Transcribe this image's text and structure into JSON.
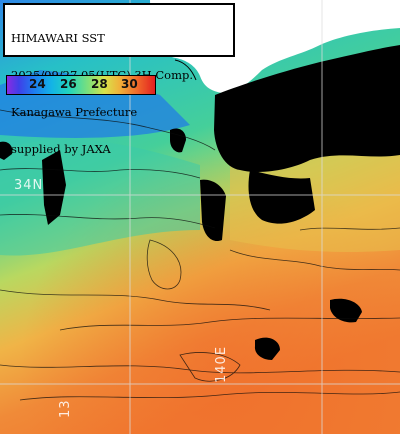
{
  "header": {
    "lines": [
      "HIMAWARI SST",
      "2025/09/27 05(UTC) 3H Comp.",
      "Kanagawa Prefecture",
      "supplied by JAXA"
    ]
  },
  "colorbar": {
    "ticks": [
      "24",
      "26",
      "28",
      "30"
    ],
    "scale_colors": [
      "#8a2be2",
      "#1e7bf0",
      "#22d4bd",
      "#d8e24a",
      "#f06a2a",
      "#e22020"
    ]
  },
  "grid_labels": {
    "lat": "34N",
    "lon_rotated": "140E",
    "lon_bottom": "13"
  },
  "colors": {
    "land": "#ffffff",
    "cloud_mask": "#000000",
    "grid": "#dcdcdc"
  }
}
